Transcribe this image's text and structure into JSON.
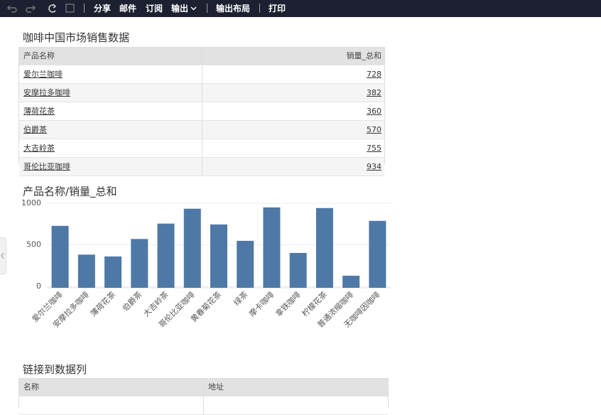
{
  "toolbar": {
    "items": [
      "分享",
      "邮件",
      "订阅",
      "输出",
      "输出布局",
      "打印"
    ]
  },
  "table1": {
    "title": "咖啡中国市场销售数据",
    "columns": [
      "产品名称",
      "销量_总和"
    ],
    "rows": [
      [
        "爱尔兰咖啡",
        "728"
      ],
      [
        "安摩拉多咖啡",
        "382"
      ],
      [
        "薄荷花茶",
        "360"
      ],
      [
        "伯爵茶",
        "570"
      ],
      [
        "大吉岭茶",
        "755"
      ],
      [
        "哥伦比亚咖啡",
        "934"
      ]
    ]
  },
  "chart_data": {
    "type": "bar",
    "title": "产品名称/销量_总和",
    "categories": [
      "爱尔兰咖啡",
      "安摩拉多咖啡",
      "薄荷花茶",
      "伯爵茶",
      "大吉岭茶",
      "哥伦比亚咖啡",
      "黄春菊花茶",
      "绿茶",
      "摩卡咖啡",
      "拿铁咖啡",
      "柠檬花茶",
      "普通浓缩咖啡",
      "无咖啡因咖啡"
    ],
    "values": [
      728,
      382,
      360,
      570,
      755,
      934,
      745,
      548,
      950,
      402,
      942,
      128,
      788
    ],
    "color": "#4e79a7",
    "ylim": [
      0,
      1000
    ],
    "yticks": [
      0,
      500,
      1000
    ],
    "grid": true
  },
  "table2": {
    "title": "链接到数据列",
    "columns": [
      "名称",
      "地址"
    ]
  }
}
